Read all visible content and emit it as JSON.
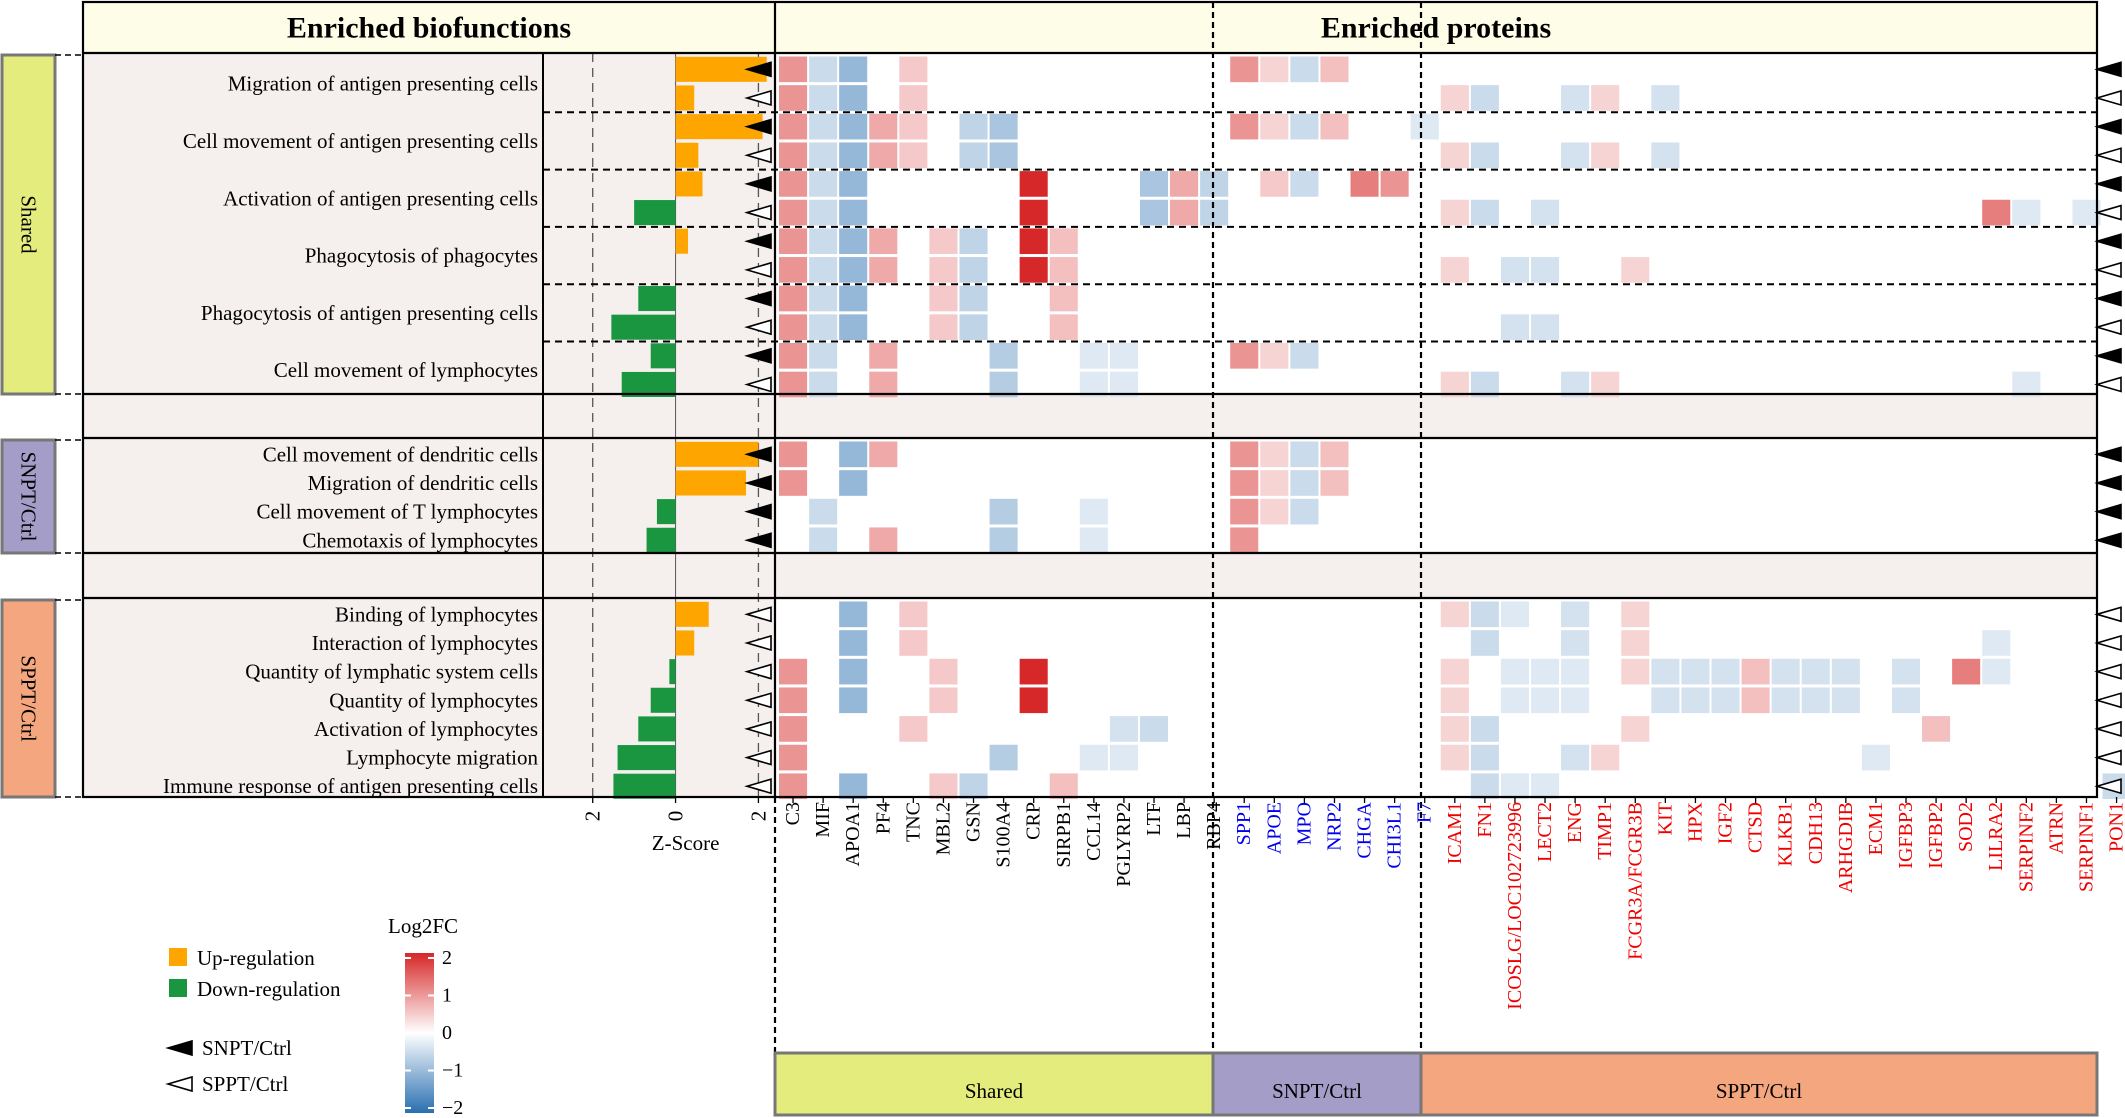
{
  "headers": {
    "biofunctions": "Enriched biofunctions",
    "proteins": "Enriched proteins"
  },
  "z_axis": {
    "label": "Z-Score",
    "ticks": [
      -2,
      0,
      2
    ],
    "tick_labels": [
      "2",
      "0",
      "2"
    ],
    "range": [
      -3.2,
      2.4
    ]
  },
  "legend": {
    "up": "Up-regulation",
    "down": "Down-regulation",
    "snpt_marker": "SNPT/Ctrl",
    "sppt_marker": "SPPT/Ctrl",
    "colorbar_title": "Log2FC",
    "colorbar_ticks": [
      "2",
      "1",
      "0",
      "−1",
      "−2"
    ]
  },
  "colors": {
    "up": "#FFA500",
    "down": "#1A9641",
    "shared": "#E4EC7E",
    "snpt": "#A39DC8",
    "sppt": "#F4A67E",
    "header_bg": "#FEFDE8",
    "panel_bg": "#F5EFEE",
    "snpt_protein": "#0000EE",
    "sppt_protein": "#EE0000"
  },
  "bottom_groups": [
    "Shared",
    "SNPT/Ctrl",
    "SPPT/Ctrl"
  ],
  "chart_data": {
    "type": "heatmap",
    "title": "Enriched biofunctions / Enriched proteins",
    "groups": [
      {
        "name": "Shared",
        "label": "Shared",
        "biofunctions": [
          {
            "name": "Migration of antigen presenting cells",
            "rows": [
              {
                "comparison": "SNPT/Ctrl",
                "zscore": 2.2
              },
              {
                "comparison": "SPPT/Ctrl",
                "zscore": 0.45
              }
            ]
          },
          {
            "name": "Cell movement of antigen presenting cells",
            "rows": [
              {
                "comparison": "SNPT/Ctrl",
                "zscore": 2.1
              },
              {
                "comparison": "SPPT/Ctrl",
                "zscore": 0.55
              }
            ]
          },
          {
            "name": "Activation of antigen presenting cells",
            "rows": [
              {
                "comparison": "SNPT/Ctrl",
                "zscore": 0.65
              },
              {
                "comparison": "SPPT/Ctrl",
                "zscore": -1.0
              }
            ]
          },
          {
            "name": "Phagocytosis of phagocytes",
            "rows": [
              {
                "comparison": "SNPT/Ctrl",
                "zscore": 0.3
              },
              {
                "comparison": "SPPT/Ctrl",
                "zscore": 0.0
              }
            ]
          },
          {
            "name": "Phagocytosis of antigen presenting cells",
            "rows": [
              {
                "comparison": "SNPT/Ctrl",
                "zscore": -0.9
              },
              {
                "comparison": "SPPT/Ctrl",
                "zscore": -1.55
              }
            ]
          },
          {
            "name": "Cell movement of lymphocytes",
            "rows": [
              {
                "comparison": "SNPT/Ctrl",
                "zscore": -0.6
              },
              {
                "comparison": "SPPT/Ctrl",
                "zscore": -1.3
              }
            ]
          }
        ]
      },
      {
        "name": "SNPT/Ctrl",
        "label": "SNPT/Ctrl",
        "biofunctions": [
          {
            "name": "Cell movement of dendritic cells",
            "rows": [
              {
                "comparison": "SNPT/Ctrl",
                "zscore": 2.0
              }
            ]
          },
          {
            "name": "Migration of dendritic cells",
            "rows": [
              {
                "comparison": "SNPT/Ctrl",
                "zscore": 1.7
              }
            ]
          },
          {
            "name": "Cell movement of T lymphocytes",
            "rows": [
              {
                "comparison": "SNPT/Ctrl",
                "zscore": -0.45
              }
            ]
          },
          {
            "name": "Chemotaxis of lymphocytes",
            "rows": [
              {
                "comparison": "SNPT/Ctrl",
                "zscore": -0.7
              }
            ]
          }
        ]
      },
      {
        "name": "SPPT/Ctrl",
        "label": "SPPT/Ctrl",
        "biofunctions": [
          {
            "name": "Binding of lymphocytes",
            "rows": [
              {
                "comparison": "SPPT/Ctrl",
                "zscore": 0.8
              }
            ]
          },
          {
            "name": "Interaction of lymphocytes",
            "rows": [
              {
                "comparison": "SPPT/Ctrl",
                "zscore": 0.45
              }
            ]
          },
          {
            "name": "Quantity of lymphatic system cells",
            "rows": [
              {
                "comparison": "SPPT/Ctrl",
                "zscore": -0.15
              }
            ]
          },
          {
            "name": "Quantity of lymphocytes",
            "rows": [
              {
                "comparison": "SPPT/Ctrl",
                "zscore": -0.6
              }
            ]
          },
          {
            "name": "Activation of lymphocytes",
            "rows": [
              {
                "comparison": "SPPT/Ctrl",
                "zscore": -0.9
              }
            ]
          },
          {
            "name": "Lymphocyte migration",
            "rows": [
              {
                "comparison": "SPPT/Ctrl",
                "zscore": -1.4
              }
            ]
          },
          {
            "name": "Immune response of antigen presenting cells",
            "rows": [
              {
                "comparison": "SPPT/Ctrl",
                "zscore": -1.5
              }
            ]
          }
        ]
      }
    ],
    "protein_groups": [
      {
        "name": "Shared",
        "proteins": [
          "C3",
          "MIF",
          "APOA1",
          "PF4",
          "TNC",
          "MBL2",
          "GSN",
          "S100A4",
          "CRP",
          "SIRPB1",
          "CCL14",
          "PGLYRP2",
          "LTF",
          "LBP",
          "RBP4"
        ]
      },
      {
        "name": "SNPT/Ctrl",
        "proteins": [
          "SPP1",
          "APOE",
          "MPO",
          "NRP2",
          "CHGA",
          "CHI3L1",
          "F7"
        ]
      },
      {
        "name": "SPPT/Ctrl",
        "proteins": [
          "ICAM1",
          "FN1",
          "ICOSLG/LOC102723996",
          "LECT2",
          "ENG",
          "TIMP1",
          "FCGR3A/FCGR3B",
          "KIT",
          "HPX",
          "IGF2",
          "CTSD",
          "KLKB1",
          "CDH13",
          "ARHGDIB",
          "ECM1",
          "IGFBP3",
          "IGFBP2",
          "SOD2",
          "LILRA2",
          "SERPINF2",
          "ATRN",
          "SERPINF1",
          "PON1"
        ]
      }
    ],
    "log2fc_range": [
      -2,
      2
    ],
    "log2fc": [
      [
        1,
        -0.5,
        -1,
        0,
        0.5,
        0,
        0,
        0,
        0,
        0,
        0,
        0,
        0,
        0,
        0,
        1,
        0.4,
        -0.5,
        0.6,
        0,
        0,
        0,
        0,
        0,
        0,
        0,
        0,
        0,
        0,
        0,
        0,
        0,
        0,
        0,
        0,
        0,
        0,
        0,
        0,
        0,
        0,
        0,
        0,
        0,
        0
      ],
      [
        1,
        -0.5,
        -1,
        0,
        0.5,
        0,
        0,
        0,
        0,
        0,
        0,
        0,
        0,
        0,
        0,
        0,
        0,
        0,
        0,
        0,
        0,
        0,
        0.4,
        -0.5,
        0,
        0,
        -0.4,
        0.4,
        0,
        -0.4,
        0,
        0,
        0,
        0,
        0,
        0,
        0,
        0,
        0,
        0,
        0,
        0,
        0,
        0,
        0
      ],
      [
        1,
        -0.5,
        -1,
        0.8,
        0.5,
        0,
        -0.6,
        -0.8,
        0,
        0,
        0,
        0,
        0,
        0,
        0,
        1,
        0.4,
        -0.5,
        0.6,
        0,
        0,
        -0.3,
        0,
        0,
        0,
        0,
        0,
        0,
        0,
        0,
        0,
        0,
        0,
        0,
        0,
        0,
        0,
        0,
        0,
        0,
        0,
        0,
        0,
        0,
        0
      ],
      [
        1,
        -0.5,
        -1,
        0.8,
        0.5,
        0,
        -0.6,
        -0.8,
        0,
        0,
        0,
        0,
        0,
        0,
        0,
        0,
        0,
        0,
        0,
        0,
        0,
        0,
        0.4,
        -0.5,
        0,
        0,
        -0.4,
        0.4,
        0,
        -0.4,
        0,
        0,
        0,
        0,
        0,
        0,
        0,
        0,
        0,
        0,
        0,
        0,
        0,
        0,
        0
      ],
      [
        1,
        -0.5,
        -1,
        0,
        0,
        0,
        0,
        0,
        2.3,
        0,
        0,
        0,
        -0.8,
        0.8,
        -0.6,
        0,
        0.5,
        -0.5,
        0,
        1.2,
        1.0,
        0,
        0,
        0,
        0,
        0,
        0,
        0,
        0,
        0,
        0,
        0,
        0,
        0,
        0,
        0,
        0,
        0,
        0,
        0,
        0,
        0,
        0,
        0,
        0
      ],
      [
        1,
        -0.5,
        -1,
        0,
        0,
        0,
        0,
        0,
        2.3,
        0,
        0,
        0,
        -0.8,
        0.8,
        -0.6,
        0,
        0,
        0,
        0,
        0,
        0,
        0,
        0.4,
        -0.5,
        0,
        -0.4,
        0,
        0,
        0,
        0,
        0,
        0,
        0,
        0,
        0,
        0,
        0,
        0,
        0,
        0,
        1.2,
        -0.3,
        0,
        -0.3,
        0
      ],
      [
        1,
        -0.5,
        -1,
        0.8,
        0,
        0.5,
        -0.6,
        0,
        2.3,
        0.6,
        0,
        0,
        0,
        0,
        0,
        0,
        0,
        0,
        0,
        0,
        0,
        0,
        0,
        0,
        0,
        0,
        0,
        0,
        0,
        0,
        0,
        0,
        0,
        0,
        0,
        0,
        0,
        0,
        0,
        0,
        0,
        0,
        0,
        0,
        0
      ],
      [
        1,
        -0.5,
        -1,
        0.8,
        0,
        0.5,
        -0.6,
        0,
        2.3,
        0.6,
        0,
        0,
        0,
        0,
        0,
        0,
        0,
        0,
        0,
        0,
        0,
        0,
        0.4,
        0,
        -0.4,
        -0.4,
        0,
        0,
        0.4,
        0,
        0,
        0,
        0,
        0,
        0,
        0,
        0,
        0,
        0,
        0,
        0,
        0,
        0,
        0,
        0
      ],
      [
        1,
        -0.5,
        -1,
        0,
        0,
        0.5,
        -0.6,
        0,
        0,
        0.6,
        0,
        0,
        0,
        0,
        0,
        0,
        0,
        0,
        0,
        0,
        0,
        0,
        0,
        0,
        0,
        0,
        0,
        0,
        0,
        0,
        0,
        0,
        0,
        0,
        0,
        0,
        0,
        0,
        0,
        0,
        0,
        0,
        0,
        0,
        0
      ],
      [
        1,
        -0.5,
        -1,
        0,
        0,
        0.5,
        -0.6,
        0,
        0,
        0.6,
        0,
        0,
        0,
        0,
        0,
        0,
        0,
        0,
        0,
        0,
        0,
        0,
        0,
        0,
        -0.4,
        -0.4,
        0,
        0,
        0,
        0,
        0,
        0,
        0,
        0,
        0,
        0,
        0,
        0,
        0,
        0,
        0,
        0,
        0,
        0,
        0
      ],
      [
        1,
        -0.5,
        0,
        0.8,
        0,
        0,
        0,
        -0.7,
        0,
        0,
        -0.3,
        -0.3,
        0,
        0,
        0,
        1,
        0.4,
        -0.5,
        0,
        0,
        0,
        0,
        0,
        0,
        0,
        0,
        0,
        0,
        0,
        0,
        0,
        0,
        0,
        0,
        0,
        0,
        0,
        0,
        0,
        0,
        0,
        0,
        0,
        0,
        0
      ],
      [
        1,
        -0.5,
        0,
        0.8,
        0,
        0,
        0,
        -0.7,
        0,
        0,
        -0.3,
        -0.3,
        0,
        0,
        0,
        0,
        0,
        0,
        0,
        0,
        0,
        0,
        0.4,
        -0.5,
        0,
        0,
        -0.4,
        0.4,
        0,
        0,
        0,
        0,
        0,
        0,
        0,
        0,
        0,
        0,
        0,
        0,
        0,
        -0.3,
        0,
        0,
        0
      ],
      [
        1,
        0,
        -1,
        0.8,
        0,
        0,
        0,
        0,
        0,
        0,
        0,
        0,
        0,
        0,
        0,
        1,
        0.4,
        -0.5,
        0.6,
        0,
        0,
        0,
        0,
        0,
        0,
        0,
        0,
        0,
        0,
        0,
        0,
        0,
        0,
        0,
        0,
        0,
        0,
        0,
        0,
        0,
        0,
        0,
        0,
        0,
        0
      ],
      [
        1,
        0,
        -1,
        0,
        0,
        0,
        0,
        0,
        0,
        0,
        0,
        0,
        0,
        0,
        0,
        1,
        0.4,
        -0.5,
        0.6,
        0,
        0,
        0,
        0,
        0,
        0,
        0,
        0,
        0,
        0,
        0,
        0,
        0,
        0,
        0,
        0,
        0,
        0,
        0,
        0,
        0,
        0,
        0,
        0,
        0,
        0
      ],
      [
        0,
        -0.5,
        0,
        0,
        0,
        0,
        0,
        -0.7,
        0,
        0,
        -0.3,
        0,
        0,
        0,
        0,
        1,
        0.4,
        -0.5,
        0,
        0,
        0,
        0,
        0,
        0,
        0,
        0,
        0,
        0,
        0,
        0,
        0,
        0,
        0,
        0,
        0,
        0,
        0,
        0,
        0,
        0,
        0,
        0,
        0,
        0,
        0
      ],
      [
        0,
        -0.5,
        0,
        0.8,
        0,
        0,
        0,
        -0.7,
        0,
        0,
        -0.3,
        0,
        0,
        0,
        0,
        1,
        0,
        0,
        0,
        0,
        0,
        0,
        0,
        0,
        0,
        0,
        0,
        0,
        0,
        0,
        0,
        0,
        0,
        0,
        0,
        0,
        0,
        0,
        0,
        0,
        0,
        0,
        0,
        0,
        0
      ],
      [
        0,
        0,
        -1,
        0,
        0.5,
        0,
        0,
        0,
        0,
        0,
        0,
        0,
        0,
        0,
        0,
        0,
        0,
        0,
        0,
        0,
        0,
        0,
        0.4,
        -0.5,
        -0.3,
        0,
        -0.4,
        0,
        0.4,
        0,
        0,
        0,
        0,
        0,
        0,
        0,
        0,
        0,
        0,
        0,
        0,
        0,
        0,
        0,
        0
      ],
      [
        0,
        0,
        -1,
        0,
        0.5,
        0,
        0,
        0,
        0,
        0,
        0,
        0,
        0,
        0,
        0,
        0,
        0,
        0,
        0,
        0,
        0,
        0,
        0,
        -0.5,
        0,
        0,
        -0.4,
        0,
        0.4,
        0,
        0,
        0,
        0,
        0,
        0,
        0,
        0,
        0,
        0,
        0,
        -0.3,
        0,
        0,
        0,
        0
      ],
      [
        1,
        0,
        -1,
        0,
        0,
        0.5,
        0,
        0,
        2.3,
        0,
        0,
        0,
        0,
        0,
        0,
        0,
        0,
        0,
        0,
        0,
        0,
        0,
        0.4,
        0,
        -0.3,
        -0.3,
        -0.3,
        0,
        0.4,
        -0.4,
        -0.4,
        -0.4,
        0.6,
        -0.4,
        -0.4,
        -0.4,
        0,
        -0.4,
        0,
        1.2,
        -0.3,
        0,
        0,
        0,
        0
      ],
      [
        1,
        0,
        -1,
        0,
        0,
        0.5,
        0,
        0,
        2.3,
        0,
        0,
        0,
        0,
        0,
        0,
        0,
        0,
        0,
        0,
        0,
        0,
        0,
        0.4,
        0,
        -0.3,
        -0.3,
        -0.3,
        0,
        0,
        -0.4,
        -0.4,
        -0.4,
        0.6,
        -0.4,
        -0.4,
        -0.4,
        0,
        -0.4,
        0,
        0,
        0,
        0,
        0,
        0,
        0
      ],
      [
        1,
        0,
        0,
        0,
        0.5,
        0,
        0,
        0,
        0,
        0,
        0,
        -0.4,
        -0.5,
        0,
        0,
        0,
        0,
        0,
        0,
        0,
        0,
        0,
        0.4,
        -0.5,
        0,
        0,
        0,
        0,
        0.4,
        0,
        0,
        0,
        0,
        0,
        0,
        0,
        0,
        0,
        0.6,
        0,
        0,
        0,
        0,
        0,
        0
      ],
      [
        1,
        0,
        0,
        0,
        0,
        0,
        0,
        -0.7,
        0,
        0,
        -0.3,
        -0.3,
        0,
        0,
        0,
        0,
        0,
        0,
        0,
        0,
        0,
        0,
        0.4,
        -0.5,
        0,
        0,
        -0.4,
        0.4,
        0,
        0,
        0,
        0,
        0,
        0,
        0,
        0,
        -0.3,
        0,
        0,
        0,
        0,
        0,
        0,
        0,
        0
      ],
      [
        1,
        0,
        -1,
        0,
        0,
        0.5,
        -0.6,
        0,
        0,
        0.6,
        0,
        0,
        0,
        0,
        0,
        0,
        0,
        0,
        0,
        0,
        0,
        0,
        0,
        -0.5,
        -0.3,
        -0.3,
        0,
        0,
        0,
        0,
        0,
        0,
        0,
        0,
        0,
        0,
        0,
        0,
        0,
        0,
        0,
        0,
        0,
        0,
        -0.5
      ]
    ]
  }
}
